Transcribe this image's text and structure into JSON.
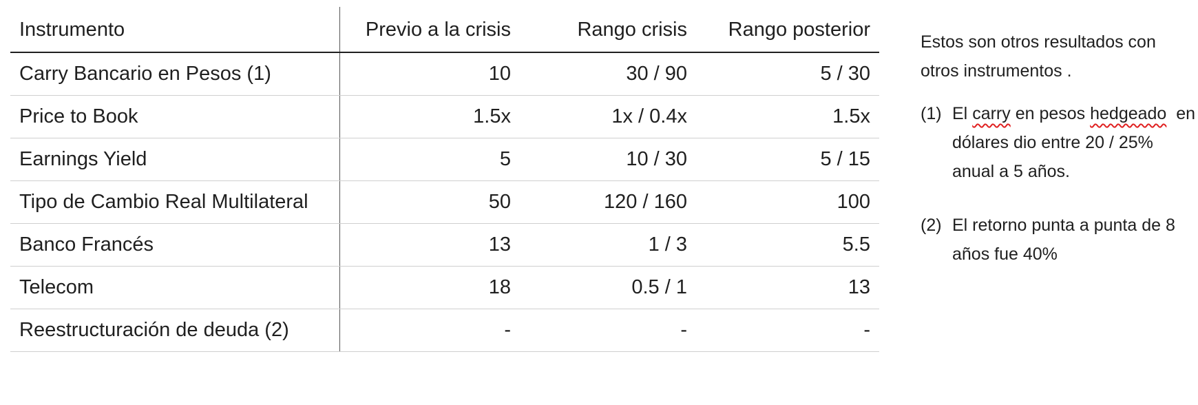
{
  "table": {
    "headers": [
      "Instrumento",
      "Previo a la crisis",
      "Rango crisis",
      "Rango posterior"
    ],
    "rows": [
      [
        "Carry Bancario en Pesos (1)",
        "10",
        "30 / 90",
        "5 / 30"
      ],
      [
        "Price to Book",
        "1.5x",
        "1x / 0.4x",
        "1.5x"
      ],
      [
        "Earnings Yield",
        "5",
        "10 / 30",
        "5 / 15"
      ],
      [
        "Tipo de Cambio Real Multilateral",
        "50",
        "120 / 160",
        "100"
      ],
      [
        "Banco Francés",
        "13",
        "1 / 3",
        "5.5"
      ],
      [
        "Telecom",
        "18",
        "0.5 / 1",
        "13"
      ],
      [
        "Reestructuración de deuda (2)",
        "-",
        "-",
        "-"
      ]
    ]
  },
  "notes": {
    "intro": "Estos son otros resultados con otros instrumentos .",
    "note1": {
      "number": "(1)",
      "text_a": "El ",
      "word1": "carry",
      "text_b": " en pesos ",
      "word2": "hedgeado",
      "text_c": "  en dólares dio entre 20 / 25% anual a 5 años."
    },
    "note2": {
      "number": "(2)",
      "text": "El retorno punta a punta de 8 años fue 40%"
    }
  }
}
